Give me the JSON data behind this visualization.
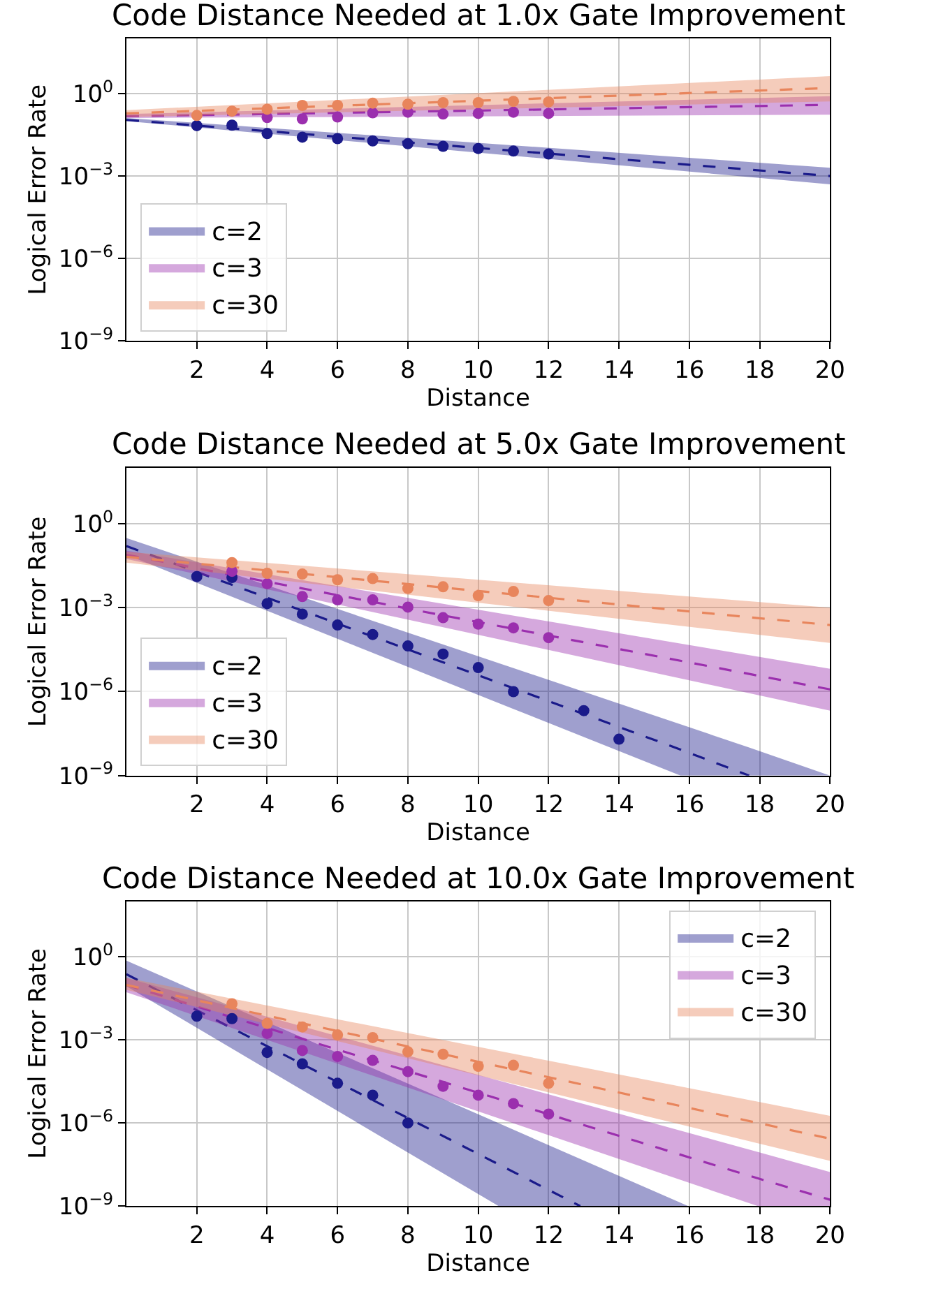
{
  "chart_data": [
    {
      "type": "scatter",
      "title": "Code Distance Needed at 1.0x Gate Improvement",
      "xlabel": "Distance",
      "ylabel": "Logical Error Rate",
      "log": "y",
      "grid": true,
      "legend": "bottom left",
      "marker": "circle",
      "xlim": [
        0,
        20
      ],
      "xticks": [
        2,
        4,
        6,
        8,
        10,
        12,
        14,
        16,
        18,
        20
      ],
      "ylim": [
        1e-09,
        100
      ],
      "yticks": [
        {
          "value": 1e-09,
          "label": "10$^{−9}$"
        },
        {
          "value": 1e-06,
          "label": "10$^{−6}$"
        },
        {
          "value": 0.001,
          "label": "10$^{−3}$"
        },
        {
          "value": 1,
          "label": "10$^{0}$"
        }
      ],
      "series": [
        {
          "type": "line",
          "name": "c=2",
          "color": "#1a1a8a",
          "line_style": "dashed",
          "marker": "none",
          "x": [
            0,
            20
          ],
          "values": [
            0.11,
            0.001
          ],
          "lower": [
            0.1,
            0.0005
          ],
          "upper": [
            0.13,
            0.002
          ]
        },
        {
          "type": "line",
          "name": "c=3",
          "color": "#9b2fae",
          "line_style": "dashed",
          "marker": "none",
          "x": [
            0,
            20
          ],
          "values": [
            0.15,
            0.39
          ],
          "lower": [
            0.13,
            0.17
          ],
          "upper": [
            0.18,
            0.81
          ]
        },
        {
          "type": "line",
          "name": "c=30",
          "color": "#e8855c",
          "line_style": "dashed",
          "marker": "none",
          "x": [
            0,
            20
          ],
          "values": [
            0.19,
            1.6
          ],
          "lower": [
            0.14,
            0.52
          ],
          "upper": [
            0.25,
            4.3
          ]
        },
        {
          "color": "#1a1a8a",
          "x": [
            2,
            3,
            4,
            5,
            6,
            7,
            8,
            9,
            10,
            11,
            12
          ],
          "values": [
            0.068,
            0.071,
            0.035,
            0.026,
            0.023,
            0.019,
            0.015,
            0.012,
            0.01,
            0.0081,
            0.0063
          ]
        },
        {
          "color": "#9b2fae",
          "x": [
            4,
            5,
            6,
            7,
            8,
            9,
            10,
            11,
            12
          ],
          "values": [
            0.135,
            0.12,
            0.14,
            0.2,
            0.21,
            0.18,
            0.19,
            0.21,
            0.19
          ]
        },
        {
          "color": "#e8855c",
          "x": [
            2,
            3,
            4,
            5,
            6,
            7,
            8,
            9,
            10,
            11,
            12
          ],
          "values": [
            0.16,
            0.23,
            0.27,
            0.37,
            0.37,
            0.45,
            0.41,
            0.47,
            0.47,
            0.52,
            0.5
          ]
        }
      ]
    },
    {
      "type": "scatter",
      "title": "Code Distance Needed at 5.0x Gate Improvement",
      "xlabel": "Distance",
      "ylabel": "Logical Error Rate",
      "log": "y",
      "grid": true,
      "legend": "bottom left",
      "marker": "circle",
      "xlim": [
        0,
        20
      ],
      "xticks": [
        2,
        4,
        6,
        8,
        10,
        12,
        14,
        16,
        18,
        20
      ],
      "ylim": [
        1e-09,
        100
      ],
      "yticks": [
        {
          "value": 1e-09,
          "label": "10$^{−9}$"
        },
        {
          "value": 1e-06,
          "label": "10$^{−6}$"
        },
        {
          "value": 0.001,
          "label": "10$^{−3}$"
        },
        {
          "value": 1,
          "label": "10$^{0}$"
        }
      ],
      "series": [
        {
          "type": "line",
          "name": "c=2",
          "color": "#1a1a8a",
          "line_style": "dashed",
          "marker": "none",
          "x": [
            0,
            15.75,
            17.7,
            20
          ],
          "values": [
            0.16,
            8.5e-09,
            1e-09,
            null
          ],
          "lower": [
            0.078,
            1e-09,
            1e-09,
            1e-09
          ],
          "upper": [
            0.31,
            6.8e-08,
            1e-08,
            1e-09
          ]
        },
        {
          "type": "line",
          "name": "c=3",
          "color": "#9b2fae",
          "line_style": "dashed",
          "marker": "none",
          "x": [
            0,
            20
          ],
          "values": [
            0.078,
            1.2e-06
          ],
          "lower": [
            0.055,
            2.1e-07
          ],
          "upper": [
            0.11,
            6.6e-06
          ]
        },
        {
          "type": "line",
          "name": "c=30",
          "color": "#e8855c",
          "line_style": "dashed",
          "marker": "none",
          "x": [
            0,
            20
          ],
          "values": [
            0.066,
            0.00024
          ],
          "lower": [
            0.041,
            5.5e-05
          ],
          "upper": [
            0.1,
            0.001
          ]
        },
        {
          "color": "#1a1a8a",
          "x": [
            2,
            3,
            4,
            5,
            6,
            7,
            8,
            9,
            10,
            11,
            13,
            14
          ],
          "values": [
            0.013,
            0.012,
            0.0014,
            0.00059,
            0.00024,
            0.00011,
            4.3e-05,
            2.2e-05,
            7.2e-06,
            1e-06,
            2.1e-07,
            2e-08
          ]
        },
        {
          "color": "#9b2fae",
          "x": [
            3,
            4,
            5,
            6,
            7,
            8,
            9,
            10,
            11,
            12
          ],
          "values": [
            0.02,
            0.0072,
            0.0025,
            0.0019,
            0.0019,
            0.00105,
            0.00044,
            0.00026,
            0.00019,
            8.5e-05
          ]
        },
        {
          "color": "#e8855c",
          "x": [
            3,
            4,
            5,
            6,
            7,
            8,
            9,
            10,
            11,
            12
          ],
          "values": [
            0.041,
            0.017,
            0.016,
            0.01,
            0.011,
            0.0049,
            0.0056,
            0.0027,
            0.0038,
            0.0018
          ]
        }
      ]
    },
    {
      "type": "scatter",
      "title": "Code Distance Needed at 10.0x Gate Improvement",
      "xlabel": "Distance",
      "ylabel": "Logical Error Rate",
      "log": "y",
      "grid": true,
      "legend": "top right",
      "marker": "circle",
      "xlim": [
        0,
        20
      ],
      "xticks": [
        2,
        4,
        6,
        8,
        10,
        12,
        14,
        16,
        18,
        20
      ],
      "ylim": [
        1e-09,
        100
      ],
      "yticks": [
        {
          "value": 1e-09,
          "label": "10$^{−9}$"
        },
        {
          "value": 1e-06,
          "label": "10$^{−6}$"
        },
        {
          "value": 0.001,
          "label": "10$^{−3}$"
        },
        {
          "value": 1,
          "label": "10$^{0}$"
        }
      ],
      "series": [
        {
          "type": "line",
          "name": "c=2",
          "color": "#1a1a8a",
          "line_style": "dashed",
          "marker": "none",
          "x": [
            0,
            10.58,
            12.9,
            15.97
          ],
          "values": [
            0.23,
            3.2e-08,
            1e-09,
            null
          ],
          "lower": [
            0.085,
            1e-09,
            1e-09,
            1e-09
          ],
          "upper": [
            0.71,
            9.8e-07,
            5e-08,
            1e-09
          ]
        },
        {
          "type": "line",
          "name": "c=3",
          "color": "#9b2fae",
          "line_style": "dashed",
          "marker": "none",
          "x": [
            0,
            17.95,
            20
          ],
          "values": [
            0.095,
            1e-08,
            1.7e-09
          ],
          "lower": [
            0.052,
            1e-09,
            1e-09
          ],
          "upper": [
            0.17,
            9e-08,
            1.7e-08
          ]
        },
        {
          "type": "line",
          "name": "c=30",
          "color": "#e8855c",
          "line_style": "dashed",
          "marker": "none",
          "x": [
            0,
            20
          ],
          "values": [
            0.095,
            2.7e-07
          ],
          "lower": [
            0.063,
            4.3e-08
          ],
          "upper": [
            0.17,
            1.8e-06
          ]
        },
        {
          "color": "#1a1a8a",
          "x": [
            2,
            3,
            4,
            5,
            6,
            7,
            8
          ],
          "values": [
            0.0071,
            0.0058,
            0.00035,
            0.000135,
            2.7e-05,
            1e-05,
            1e-06
          ]
        },
        {
          "color": "#9b2fae",
          "x": [
            4,
            5,
            6,
            7,
            8,
            9,
            10,
            11,
            12
          ],
          "values": [
            0.0017,
            0.00041,
            0.00025,
            0.00018,
            7.1e-05,
            2.1e-05,
            1e-05,
            5e-06,
            2.1e-06
          ]
        },
        {
          "color": "#e8855c",
          "x": [
            3,
            4,
            5,
            6,
            7,
            8,
            9,
            10,
            11,
            12
          ],
          "values": [
            0.02,
            0.0039,
            0.0029,
            0.0015,
            0.0012,
            0.00037,
            0.0003,
            0.00011,
            0.00012,
            2.7e-05
          ]
        }
      ]
    }
  ]
}
